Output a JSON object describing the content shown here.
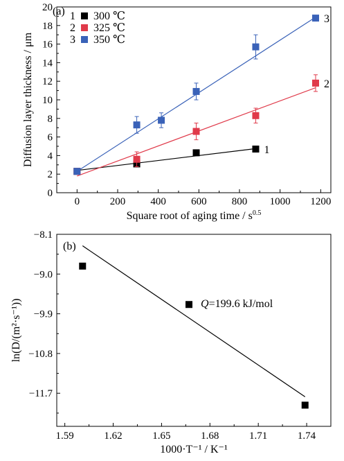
{
  "chart_data": [
    {
      "type": "scatter",
      "panel_label": "(a)",
      "xlabel": "Square root of aging time / s",
      "xlabel_sup": "0.5",
      "ylabel": "Diffusion layer thickness / μm",
      "xlim": [
        -100,
        1250
      ],
      "ylim": [
        0,
        20
      ],
      "xticks": [
        "0",
        "200",
        "400",
        "600",
        "800",
        "1000",
        "1200"
      ],
      "yticks": [
        "0",
        "2",
        "4",
        "6",
        "8",
        "10",
        "12",
        "14",
        "16",
        "18",
        "20"
      ],
      "grid": false,
      "legend_position": "top-left",
      "series": [
        {
          "name": "300 ℃",
          "legend_number": "1",
          "end_label": "1",
          "color": "#000000",
          "x": [
            0,
            294,
            587,
            880
          ],
          "y": [
            2.3,
            3.1,
            4.3,
            4.7
          ],
          "err": [
            0.2,
            0.3,
            0.2,
            0.2
          ],
          "fit": [
            [
              0,
              2.4
            ],
            [
              880,
              4.75
            ]
          ]
        },
        {
          "name": "325 ℃",
          "legend_number": "2",
          "end_label": "2",
          "color": "#e03a4a",
          "x": [
            0,
            294,
            587,
            880,
            1175
          ],
          "y": [
            2.3,
            3.6,
            6.6,
            8.3,
            11.8
          ],
          "err": [
            0.2,
            0.8,
            0.9,
            0.8,
            0.9
          ],
          "fit": [
            [
              0,
              1.8
            ],
            [
              1175,
              11.3
            ]
          ]
        },
        {
          "name": "350 ℃",
          "legend_number": "3",
          "end_label": "3",
          "color": "#3a62b8",
          "x": [
            0,
            294,
            415,
            587,
            880,
            1175
          ],
          "y": [
            2.3,
            7.3,
            7.8,
            10.9,
            15.7,
            18.8
          ],
          "err": [
            0.2,
            0.9,
            0.8,
            0.9,
            1.3,
            0.2
          ],
          "fit": [
            [
              0,
              2.3
            ],
            [
              1175,
              18.9
            ]
          ]
        }
      ]
    },
    {
      "type": "scatter",
      "panel_label": "(b)",
      "xlabel": "1000·T⁻¹ / K⁻¹",
      "ylabel": "ln(D/(m²·s⁻¹))",
      "xlim": [
        1.585,
        1.755
      ],
      "ylim": [
        -12.45,
        -8.1
      ],
      "xticks": [
        "1.59",
        "1.62",
        "1.65",
        "1.68",
        "1.71",
        "1.74"
      ],
      "yticks": [
        "-8.1",
        "-9.0",
        "-9.9",
        "-10.8",
        "-11.7"
      ],
      "grid": false,
      "annotation_name": "Q",
      "annotation_value": "=199.6 kJ/mol",
      "points": {
        "x": [
          1.601,
          1.667,
          1.739
        ],
        "y": [
          -8.82,
          -9.69,
          -11.97
        ]
      },
      "fit": [
        [
          1.601,
          -8.36
        ],
        [
          1.739,
          -11.78
        ]
      ],
      "color": "#000000"
    }
  ]
}
